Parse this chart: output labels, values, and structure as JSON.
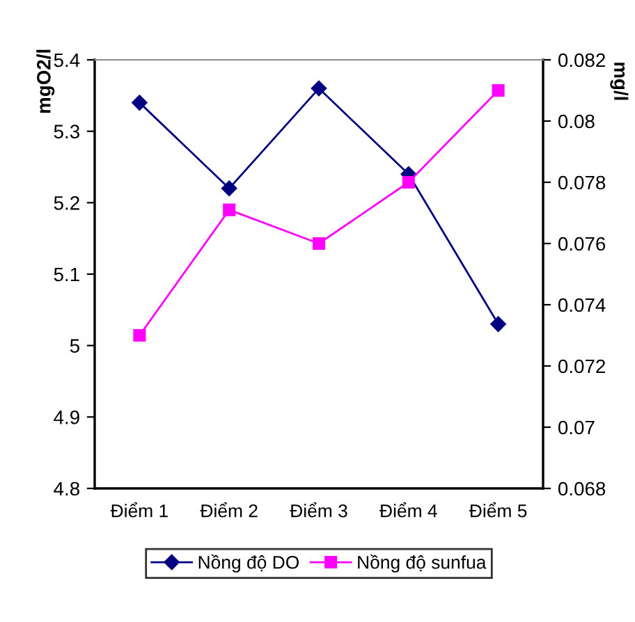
{
  "chart_data": {
    "type": "line",
    "categories": [
      "Điểm 1",
      "Điểm 2",
      "Điểm 3",
      "Điểm 4",
      "Điểm 5"
    ],
    "ylabel": "mgO2/l",
    "y2label": "mg/l",
    "ylim": [
      4.8,
      5.4
    ],
    "yticks": [
      4.8,
      4.9,
      5,
      5.1,
      5.2,
      5.3,
      5.4
    ],
    "y2lim": [
      0.068,
      0.082
    ],
    "y2ticks": [
      0.068,
      0.07,
      0.072,
      0.074,
      0.076,
      0.078,
      0.08,
      0.082
    ],
    "grid": false,
    "legend": "bottom",
    "series": [
      {
        "name": "Nồng độ DO",
        "color": "#000080",
        "marker": "diamond",
        "values": [
          5.34,
          5.22,
          5.36,
          5.24,
          5.03
        ]
      },
      {
        "name": "Nồng độ sunfua",
        "color": "#ff00ff",
        "marker": "square",
        "axis": "y2",
        "values": [
          0.073,
          0.0771,
          0.076,
          0.078,
          0.081
        ]
      }
    ]
  }
}
